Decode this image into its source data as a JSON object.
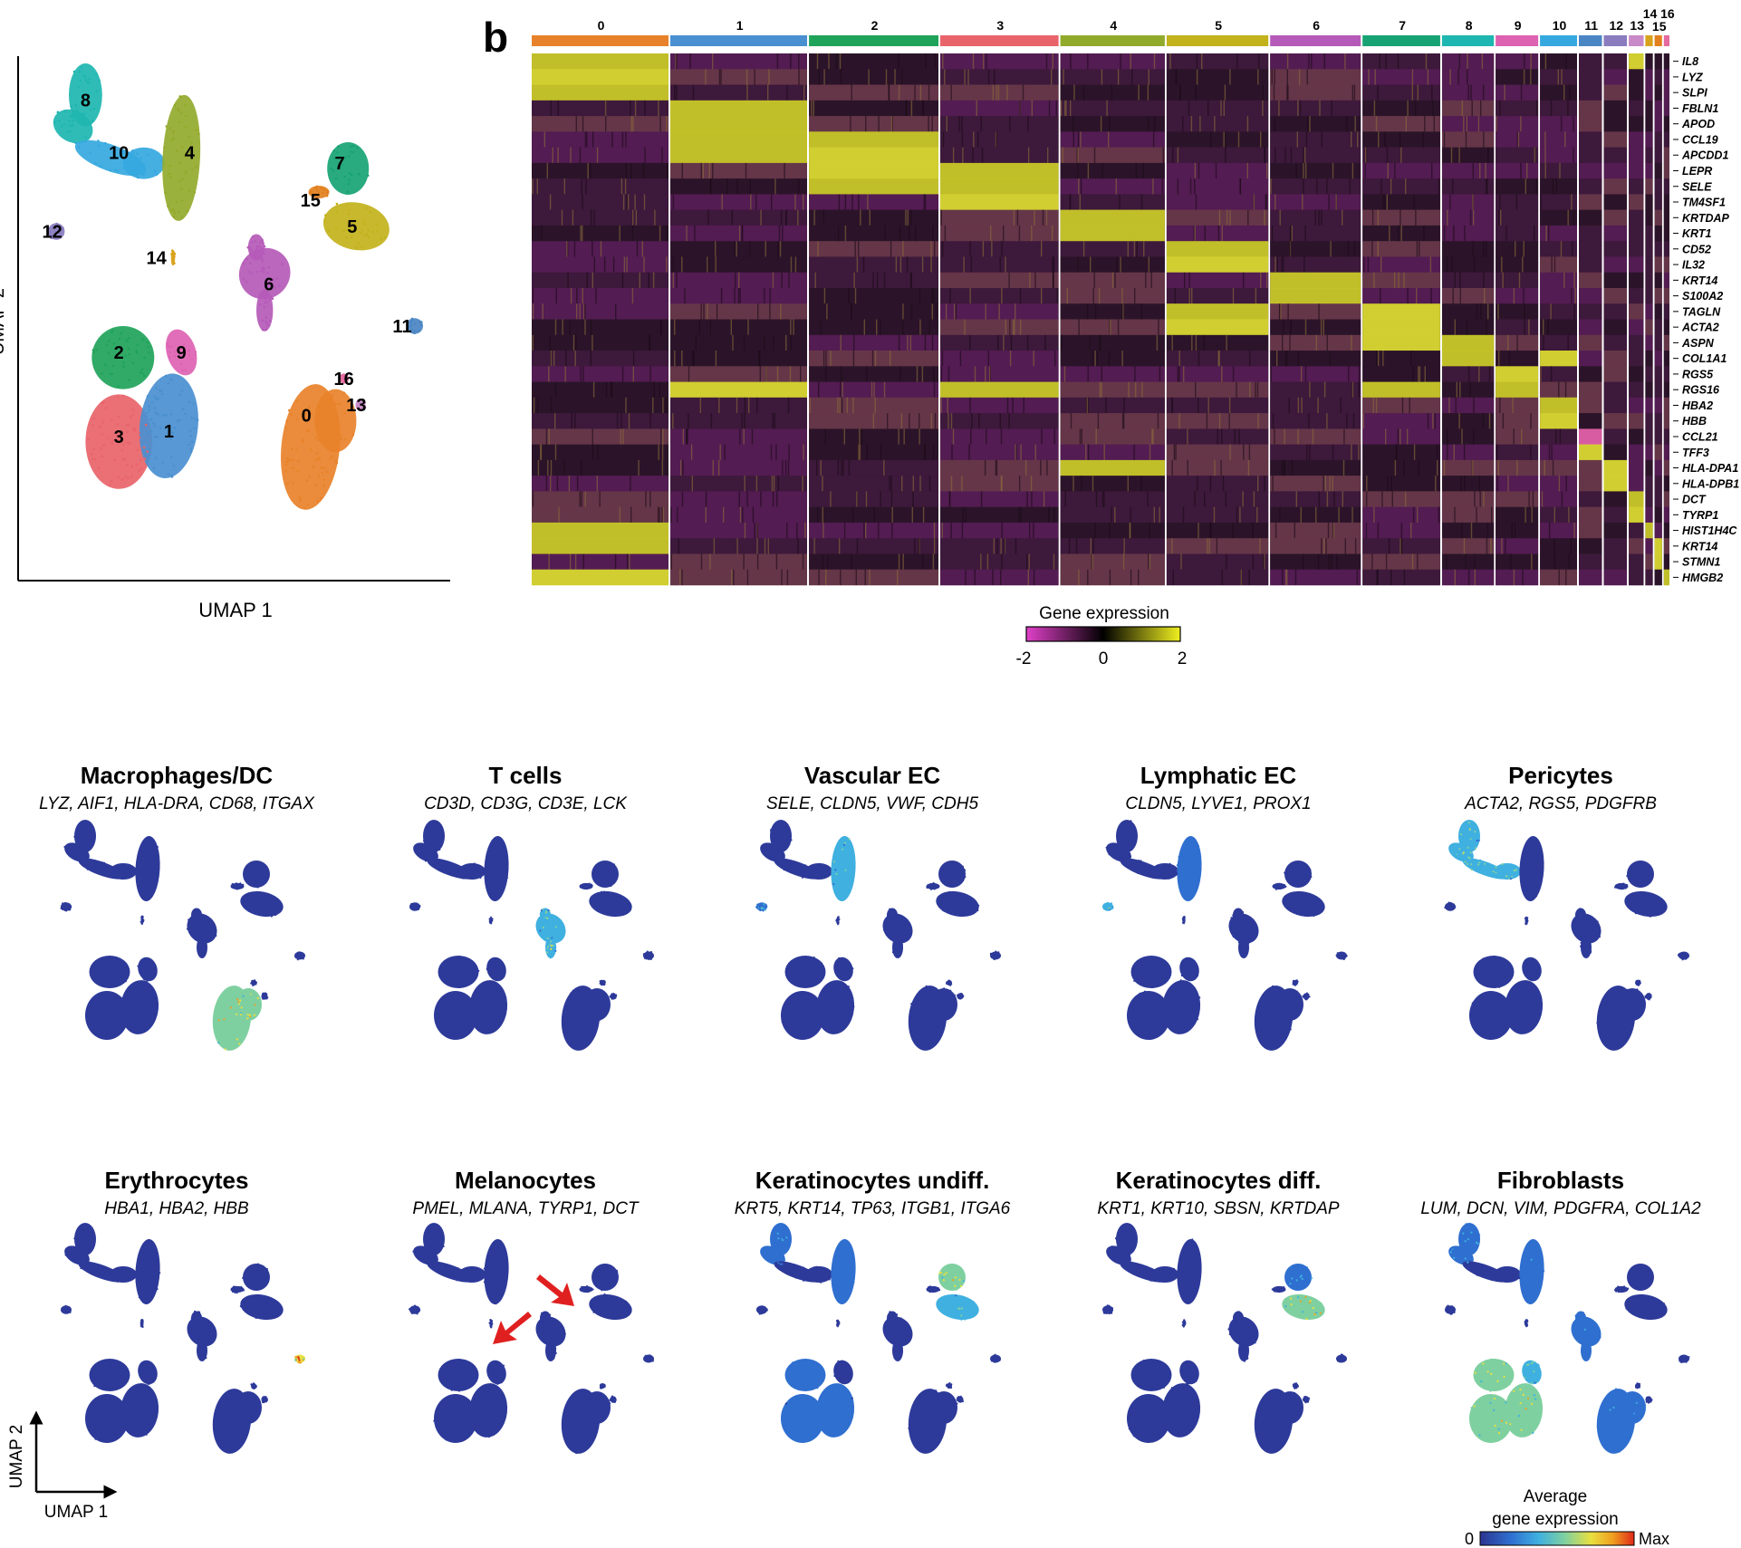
{
  "panel_a": {
    "xlabel": "UMAP 1",
    "ylabel_fragment": "UMAP 2",
    "clusters": [
      {
        "id": "0",
        "color": "#e8822a"
      },
      {
        "id": "1",
        "color": "#4a8fd0"
      },
      {
        "id": "2",
        "color": "#1fa35a"
      },
      {
        "id": "3",
        "color": "#e8646a"
      },
      {
        "id": "4",
        "color": "#92aa2c"
      },
      {
        "id": "5",
        "color": "#c2b21c"
      },
      {
        "id": "6",
        "color": "#b55ab8"
      },
      {
        "id": "7",
        "color": "#17a374"
      },
      {
        "id": "8",
        "color": "#1eb6b0"
      },
      {
        "id": "9",
        "color": "#de62b2"
      },
      {
        "id": "10",
        "color": "#35a8df"
      },
      {
        "id": "11",
        "color": "#4b86c4"
      },
      {
        "id": "12",
        "color": "#8a7cbf"
      },
      {
        "id": "13",
        "color": "#c98ac8"
      },
      {
        "id": "14",
        "color": "#d9a21c"
      },
      {
        "id": "15",
        "color": "#e2801e"
      },
      {
        "id": "16",
        "color": "#e46aa0"
      }
    ]
  },
  "panel_b": {
    "label": "b",
    "cluster_headers": [
      "0",
      "1",
      "2",
      "3",
      "4",
      "5",
      "6",
      "7",
      "8",
      "9",
      "10",
      "11",
      "12",
      "13",
      "14",
      "15",
      "16"
    ],
    "genes": [
      "IL8",
      "LYZ",
      "SLPI",
      "FBLN1",
      "APOD",
      "CCL19",
      "APCDD1",
      "LEPR",
      "SELE",
      "TM4SF1",
      "KRTDAP",
      "KRT1",
      "CD52",
      "IL32",
      "KRT14",
      "S100A2",
      "TAGLN",
      "ACTA2",
      "ASPN",
      "COL1A1",
      "RGS5",
      "RGS16",
      "HBA2",
      "HBB",
      "CCL21",
      "TFF3",
      "HLA-DPA1",
      "HLA-DPB1",
      "DCT",
      "TYRP1",
      "HIST1H4C",
      "KRT14",
      "STMN1",
      "HMGB2"
    ],
    "colorbar": {
      "title": "Gene expression",
      "min_label": "-2",
      "mid_label": "0",
      "max_label": "2",
      "low_color": "#e040c8",
      "mid_color": "#000000",
      "high_color": "#f0f020"
    }
  },
  "feature_panels": [
    {
      "title": "Macrophages/DC",
      "genes": "LYZ, AIF1, HLA-DRA, CD68, ITGAX"
    },
    {
      "title": "T cells",
      "genes": "CD3D, CD3G, CD3E, LCK"
    },
    {
      "title": "Vascular EC",
      "genes": "SELE, CLDN5, VWF, CDH5"
    },
    {
      "title": "Lymphatic EC",
      "genes": "CLDN5, LYVE1, PROX1"
    },
    {
      "title": "Pericytes",
      "genes": "ACTA2, RGS5, PDGFRB"
    },
    {
      "title": "Erythrocytes",
      "genes": "HBA1, HBA2, HBB"
    },
    {
      "title": "Melanocytes",
      "genes": "PMEL, MLANA, TYRP1, DCT"
    },
    {
      "title": "Keratinocytes undiff.",
      "genes": "KRT5, KRT14, TP63, ITGB1, ITGA6"
    },
    {
      "title": "Keratinocytes diff.",
      "genes": "KRT1, KRT10, SBSN, KRTDAP"
    },
    {
      "title": "Fibroblasts",
      "genes": "LUM, DCN, VIM, PDGFRA, COL1A2"
    }
  ],
  "axis_legend": {
    "x": "UMAP 1",
    "y": "UMAP 2"
  },
  "avg_colorbar": {
    "title_line1": "Average",
    "title_line2": "gene expression",
    "min_label": "0",
    "max_label": "Max",
    "stops": [
      "#2c3590",
      "#2f6fd0",
      "#3fb0e0",
      "#7fd0a0",
      "#e8e040",
      "#f0a020",
      "#e02818"
    ]
  },
  "marker_color": "#e02020",
  "base_cell_color": "#2d3a9a"
}
